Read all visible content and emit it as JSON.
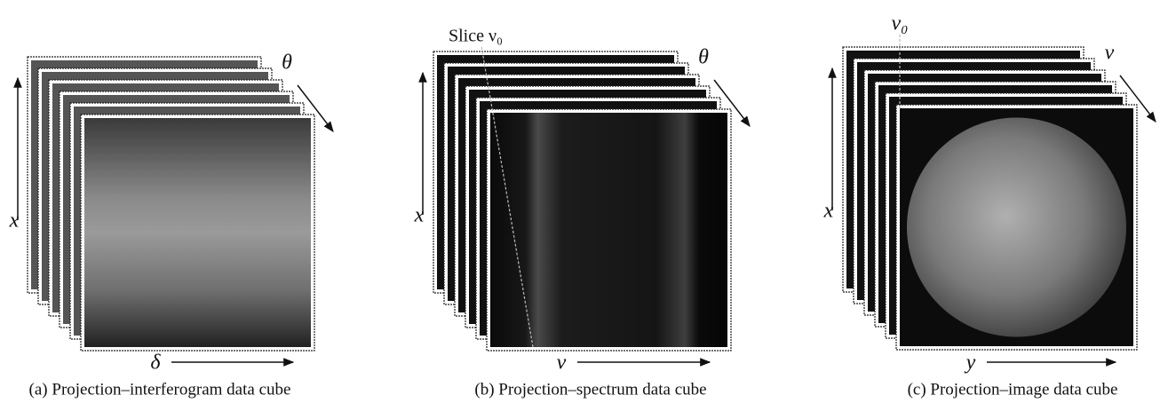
{
  "panels": [
    {
      "caption": "(a) Projection–interferogram data cube",
      "labels": {
        "vertical": "x",
        "depth": "θ",
        "horizontal": "δ"
      }
    },
    {
      "caption": "(b) Projection–spectrum data cube",
      "labels": {
        "vertical": "x",
        "depth": "θ",
        "horizontal": "ν",
        "slice": "Slice ν₀"
      }
    },
    {
      "caption": "(c) Projection–image data cube",
      "labels": {
        "vertical": "x",
        "depth": "ν",
        "horizontal": "y",
        "slice": "ν₀"
      }
    }
  ]
}
